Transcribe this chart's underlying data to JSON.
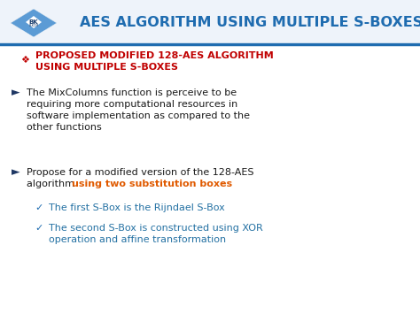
{
  "title": "AES ALGORITHM USING MULTIPLE S-BOXES",
  "title_color": "#1F6CB0",
  "bg_color": "#FFFFFF",
  "header_bg": "#EEF3FA",
  "line_color": "#1F6CB0",
  "bullet1_marker": "❖",
  "bullet1_color": "#C00000",
  "bullet1_text_line1": "PROPOSED MODIFIED 128-AES ALGORITHM",
  "bullet1_text_line2": "USING MULTIPLE S-BOXES",
  "arrow_color": "#1F3864",
  "bullet3_highlight_color": "#E05A00",
  "check_color": "#1F6CB0",
  "sub1_text": "The first S-Box is the Rijndael S-Box",
  "sub_text_color": "#2471A3",
  "body_text_color": "#1A1A1A",
  "logo_blue_dark": "#1A3E6E",
  "logo_blue_mid": "#2471A3",
  "logo_blue_light": "#5B9BD5",
  "logo_blue_lighter": "#9DC3E6"
}
